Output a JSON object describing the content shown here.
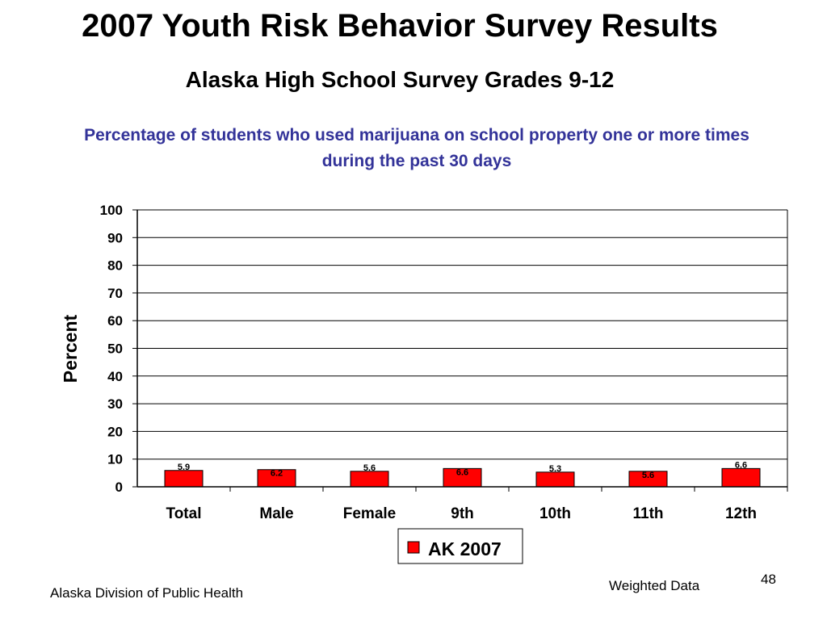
{
  "slide": {
    "title": "2007 Youth Risk Behavior Survey Results",
    "subtitle": "Alaska High School Survey Grades 9-12",
    "footer_left": "Alaska Division of Public Health",
    "footer_right": "Weighted Data",
    "page_number": "48"
  },
  "colors": {
    "bar_fill": "#ff0000",
    "chart_title": "#333399",
    "gridline": "#000000"
  },
  "chart_data": {
    "type": "bar",
    "title": "Percentage of students who used marijuana on school property one or more times during the past 30 days",
    "xlabel": "",
    "ylabel": "Percent",
    "ylim": [
      0,
      100
    ],
    "yticks": [
      0,
      10,
      20,
      30,
      40,
      50,
      60,
      70,
      80,
      90,
      100
    ],
    "grid": true,
    "legend_position": "bottom",
    "categories": [
      "Total",
      "Male",
      "Female",
      "9th",
      "10th",
      "11th",
      "12th"
    ],
    "series": [
      {
        "name": "AK 2007",
        "values": [
          5.9,
          6.2,
          5.6,
          6.6,
          5.3,
          5.6,
          6.6
        ],
        "labels": [
          "5.9",
          "6.2",
          "5.6",
          "6.6",
          "5.3",
          "5.6",
          "6.6"
        ]
      }
    ]
  }
}
